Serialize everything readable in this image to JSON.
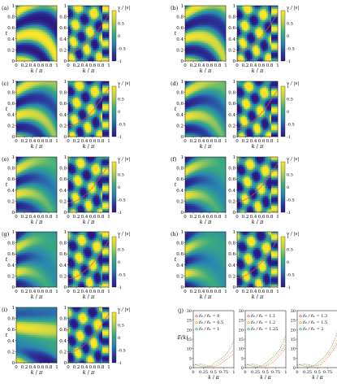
{
  "panels": [
    {
      "label": "(a)",
      "variant": 0
    },
    {
      "label": "(b)",
      "variant": 1
    },
    {
      "label": "(c)",
      "variant": 2
    },
    {
      "label": "(d)",
      "variant": 3
    },
    {
      "label": "(e)",
      "variant": 4
    },
    {
      "label": "(f)",
      "variant": 5
    },
    {
      "label": "(g)",
      "variant": 6
    },
    {
      "label": "(h)",
      "variant": 7
    },
    {
      "label": "(i)",
      "variant": 8
    }
  ],
  "axes": {
    "y_ticks": [
      "0",
      "0.2",
      "0.4",
      "0.6",
      "0.8",
      "1"
    ],
    "x_ticks": [
      "0",
      "0.2",
      "0.4",
      "0.6",
      "0.8",
      "1"
    ],
    "x_label_k": "k",
    "x_label_pi": "π",
    "y_label": "t"
  },
  "colorbar": {
    "label": "v / |v|",
    "ticks": [
      "1",
      "0.5",
      "0",
      "-0.5",
      "-1"
    ],
    "colors": [
      "#fde725",
      "#c0d34a",
      "#3aab80",
      "#2a86b0",
      "#2b3a9c",
      "#2a1a80"
    ]
  },
  "panel_j": {
    "label": "(j)",
    "y_label": "E(k)",
    "y_ticks": [
      "0",
      "5",
      "10",
      "15",
      "20",
      "25",
      "30"
    ],
    "x_ticks": [
      "0",
      "0.25",
      "0.5",
      "0.75",
      "1"
    ],
    "x_label_k": "k",
    "x_label_pi": "π",
    "subplots": [
      {
        "legend": [
          {
            "ratio": "= 0",
            "color": "#e05070"
          },
          {
            "ratio": "= 0.5",
            "color": "#e0a030"
          },
          {
            "ratio": "= 1",
            "color": "#30a050"
          }
        ]
      },
      {
        "legend": [
          {
            "ratio": "= 1.1",
            "color": "#e05070"
          },
          {
            "ratio": "= 1.2",
            "color": "#e0a030"
          },
          {
            "ratio": "= 1.25",
            "color": "#30a050"
          }
        ]
      },
      {
        "legend": [
          {
            "ratio": "= 1.3",
            "color": "#e05070"
          },
          {
            "ratio": "= 1.5",
            "color": "#e0a030"
          },
          {
            "ratio": "= 2",
            "color": "#30a050"
          }
        ]
      }
    ]
  }
}
